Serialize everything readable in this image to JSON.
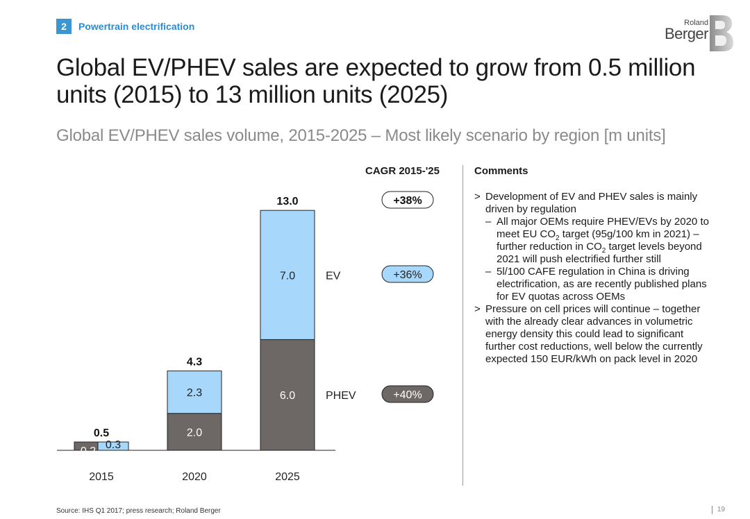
{
  "section": {
    "number": "2",
    "title": "Powertrain electrification"
  },
  "logo": {
    "top": "Roland",
    "bottom": "Berger"
  },
  "title": "Global EV/PHEV sales are expected to grow from 0.5 million units (2015) to 13 million units (2025)",
  "subtitle": "Global EV/PHEV sales volume, 2015-2025 – Most likely scenario by region [m units]",
  "colors": {
    "phev": "#6d6766",
    "ev": "#a7d8fc",
    "accent": "#3c96d2"
  },
  "chart_data": {
    "type": "bar",
    "stacked": true,
    "categories": [
      "2015",
      "2020",
      "2025"
    ],
    "series": [
      {
        "name": "PHEV",
        "values": [
          0.2,
          2.0,
          6.0
        ],
        "labels": [
          "0.2",
          "2.0",
          "6.0"
        ]
      },
      {
        "name": "EV",
        "values": [
          0.3,
          2.3,
          7.0
        ],
        "labels": [
          "0.3",
          "2.3",
          "7.0"
        ]
      }
    ],
    "totals": [
      0.5,
      4.3,
      13.0
    ],
    "total_labels": [
      "0.5",
      "4.3",
      "13.0"
    ],
    "cagr": {
      "title": "CAGR 2015-'25",
      "total": "+38%",
      "EV": "+36%",
      "PHEV": "+40%"
    }
  },
  "comments": {
    "title": "Comments",
    "bullet": ">",
    "dash": "–",
    "b1": "Development of EV and PHEV sales is mainly driven by regulation",
    "s1a": "All major OEMs require PHEV/EVs by 2020 to meet EU CO",
    "s1b": " target (95g/100 km in 2021) – further reduction in CO",
    "s1c": " target levels beyond 2021 will push electrified further still",
    "sub2": "2",
    "s2": "5l/100 CAFE regulation in China is driving electrification, as are recently published plans for EV quotas across OEMs",
    "b2": "Pressure on cell prices will continue – together with the already clear advances in volumetric energy density this could lead to significant further cost reductions, well below the currently expected 150 EUR/kWh on pack level in 2020"
  },
  "footer": "Source: IHS Q1 2017; press research; Roland Berger",
  "page_number": "19"
}
